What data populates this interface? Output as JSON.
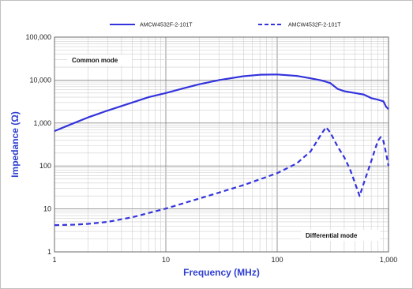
{
  "chart_data": {
    "type": "line",
    "title": "",
    "xlabel": "Frequency (MHz)",
    "ylabel": "Impedance (Ω)",
    "x_scale": "log",
    "y_scale": "log",
    "xlim": [
      1,
      1000
    ],
    "ylim": [
      1,
      100000
    ],
    "grid": true,
    "legend_position": "top",
    "x_ticks": [
      {
        "value": 1,
        "label": "1"
      },
      {
        "value": 10,
        "label": "10"
      },
      {
        "value": 100,
        "label": "100"
      },
      {
        "value": 1000,
        "label": "1,000"
      }
    ],
    "y_ticks": [
      {
        "value": 1,
        "label": "1"
      },
      {
        "value": 10,
        "label": "10"
      },
      {
        "value": 100,
        "label": "100"
      },
      {
        "value": 1000,
        "label": "1,000"
      },
      {
        "value": 10000,
        "label": "10,000"
      },
      {
        "value": 100000,
        "label": "100,000"
      }
    ],
    "annotations": [
      {
        "id": "common-mode",
        "text": "Common mode"
      },
      {
        "id": "differential-mode",
        "text": "Differential mode"
      }
    ],
    "series": [
      {
        "name": "AMCW4532F-2-101T",
        "style": "solid",
        "color": "#3333dd",
        "points": [
          [
            1,
            650
          ],
          [
            1.5,
            1000
          ],
          [
            2,
            1350
          ],
          [
            3,
            1950
          ],
          [
            5,
            3000
          ],
          [
            7,
            4000
          ],
          [
            10,
            5000
          ],
          [
            15,
            6600
          ],
          [
            20,
            8000
          ],
          [
            30,
            10000
          ],
          [
            50,
            12300
          ],
          [
            70,
            13300
          ],
          [
            100,
            13500
          ],
          [
            150,
            12500
          ],
          [
            200,
            11000
          ],
          [
            250,
            9800
          ],
          [
            300,
            8500
          ],
          [
            350,
            6200
          ],
          [
            400,
            5500
          ],
          [
            500,
            5000
          ],
          [
            600,
            4600
          ],
          [
            700,
            3800
          ],
          [
            800,
            3500
          ],
          [
            900,
            3200
          ],
          [
            950,
            2400
          ],
          [
            1000,
            2100
          ]
        ]
      },
      {
        "name": "AMCW4532F-2-101T",
        "style": "dashed",
        "color": "#3333dd",
        "points": [
          [
            1,
            4.2
          ],
          [
            1.5,
            4.3
          ],
          [
            2,
            4.5
          ],
          [
            3,
            5.0
          ],
          [
            5,
            6.4
          ],
          [
            7,
            8.0
          ],
          [
            10,
            10.2
          ],
          [
            15,
            14.0
          ],
          [
            20,
            17.5
          ],
          [
            30,
            24
          ],
          [
            50,
            36
          ],
          [
            70,
            49
          ],
          [
            100,
            68
          ],
          [
            150,
            115
          ],
          [
            200,
            220
          ],
          [
            250,
            560
          ],
          [
            275,
            800
          ],
          [
            300,
            600
          ],
          [
            350,
            280
          ],
          [
            400,
            160
          ],
          [
            450,
            85
          ],
          [
            500,
            40
          ],
          [
            550,
            20
          ],
          [
            600,
            40
          ],
          [
            700,
            130
          ],
          [
            800,
            380
          ],
          [
            850,
            470
          ],
          [
            900,
            380
          ],
          [
            950,
            200
          ],
          [
            1000,
            100
          ]
        ]
      }
    ]
  }
}
